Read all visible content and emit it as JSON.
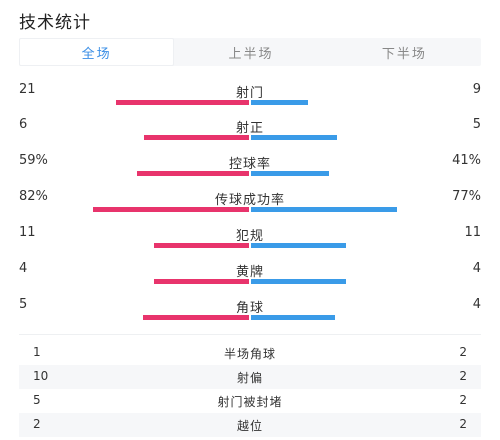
{
  "title": "技术统计",
  "tabs": [
    {
      "label": "全场",
      "active": true
    },
    {
      "label": "上半场",
      "active": false
    },
    {
      "label": "下半场",
      "active": false
    }
  ],
  "colors": {
    "home": "#e8346c",
    "away": "#3a9be8",
    "active_tab": "#3a8ee6"
  },
  "stats": [
    {
      "label": "射门",
      "home": "21",
      "away": "9",
      "home_share": 0.7,
      "away_share": 0.3
    },
    {
      "label": "射正",
      "home": "6",
      "away": "5",
      "home_share": 0.55,
      "away_share": 0.45
    },
    {
      "label": "控球率",
      "home": "59%",
      "away": "41%",
      "home_share": 0.59,
      "away_share": 0.41
    },
    {
      "label": "传球成功率",
      "home": "82%",
      "away": "77%",
      "home_share": 0.82,
      "away_share": 0.77
    },
    {
      "label": "犯规",
      "home": "11",
      "away": "11",
      "home_share": 0.5,
      "away_share": 0.5
    },
    {
      "label": "黄牌",
      "home": "4",
      "away": "4",
      "home_share": 0.5,
      "away_share": 0.5
    },
    {
      "label": "角球",
      "home": "5",
      "away": "4",
      "home_share": 0.56,
      "away_share": 0.44
    }
  ],
  "extra_stats": [
    {
      "label": "半场角球",
      "home": "1",
      "away": "2"
    },
    {
      "label": "射偏",
      "home": "10",
      "away": "2"
    },
    {
      "label": "射门被封堵",
      "home": "5",
      "away": "2"
    },
    {
      "label": "越位",
      "home": "2",
      "away": "2"
    }
  ]
}
